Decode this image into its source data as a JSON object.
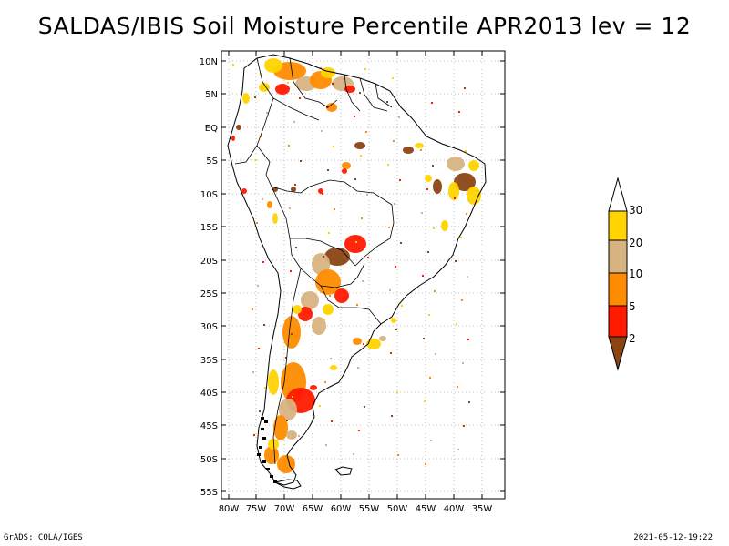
{
  "title": "SALDAS/IBIS Soil Moisture Percentile APR2013 lev = 12",
  "footer": {
    "credit": "GrADS: COLA/IGES",
    "timestamp": "2021-05-12-19:22"
  },
  "lat_labels": [
    "10N",
    "5N",
    "EQ",
    "5S",
    "10S",
    "15S",
    "20S",
    "25S",
    "30S",
    "35S",
    "40S",
    "45S",
    "50S",
    "55S"
  ],
  "lon_labels": [
    "80W",
    "75W",
    "70W",
    "65W",
    "60W",
    "55W",
    "50W",
    "45W",
    "40W",
    "35W"
  ],
  "legend": {
    "labels": [
      "30",
      "20",
      "10",
      "5",
      "2"
    ],
    "colors": {
      "above": "#ffffff",
      "c20_30": "#ffd400",
      "c10_20": "#d8b382",
      "c5_10": "#ff8c00",
      "c2_5": "#ff1a00",
      "below2": "#8b4513"
    }
  },
  "palette": {
    "brown": "#8b4513",
    "red": "#ff1a00",
    "orange": "#ff8c00",
    "tan": "#d8b382",
    "yellow": "#ffd400"
  }
}
